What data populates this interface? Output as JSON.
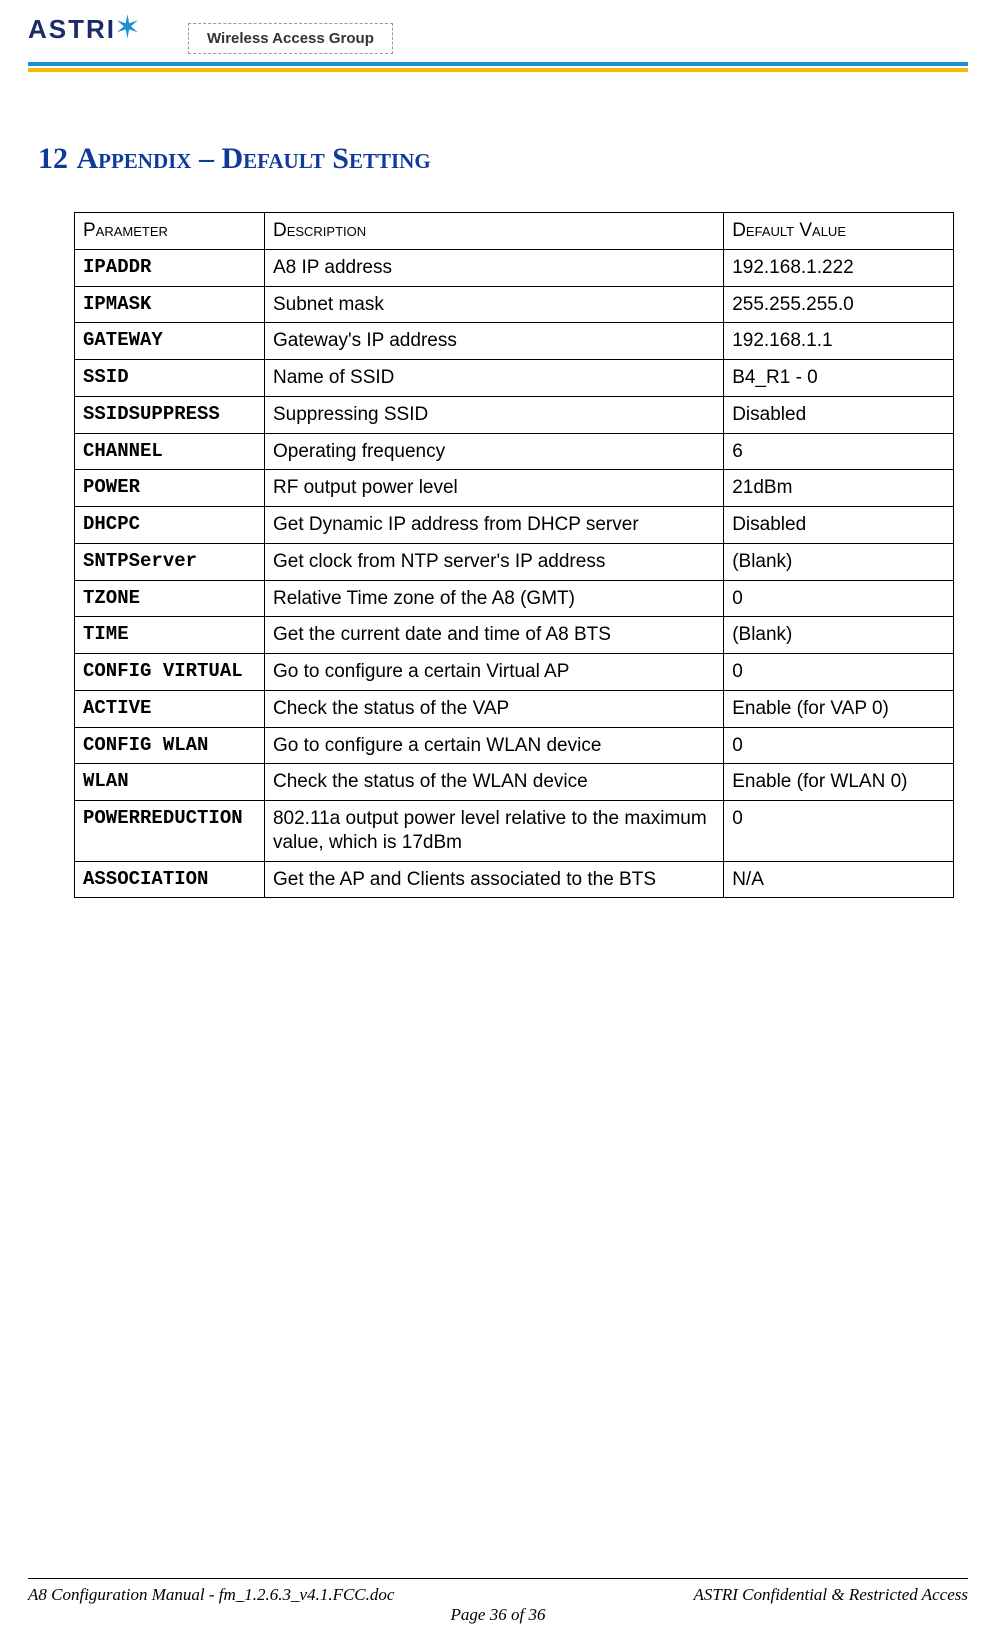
{
  "header": {
    "logo_text": "ASTRI",
    "group_label": "Wireless Access Group"
  },
  "section": {
    "number": "12",
    "title": "Appendix – Default Setting"
  },
  "table": {
    "columns": [
      "Parameter",
      "Description",
      "Default Value"
    ],
    "rows": [
      {
        "param": "IPADDR",
        "desc": "A8 IP address",
        "value": "192.168.1.222"
      },
      {
        "param": "IPMASK",
        "desc": "Subnet mask",
        "value": "255.255.255.0"
      },
      {
        "param": "GATEWAY",
        "desc": "Gateway's IP address",
        "value": "192.168.1.1"
      },
      {
        "param": "SSID",
        "desc": "Name of SSID",
        "value": "B4_R1 - 0"
      },
      {
        "param": "SSIDSUPPRESS",
        "desc": "Suppressing SSID",
        "value": "Disabled"
      },
      {
        "param": "CHANNEL",
        "desc": "Operating frequency",
        "value": "6"
      },
      {
        "param": "POWER",
        "desc": "RF output power level",
        "value": "21dBm"
      },
      {
        "param": "DHCPC",
        "desc": "Get Dynamic IP address from DHCP server",
        "value": "Disabled"
      },
      {
        "param": "SNTPServer",
        "desc": "Get clock from NTP server's IP address",
        "value": "(Blank)"
      },
      {
        "param": "TZONE",
        "desc": "Relative Time zone of the A8 (GMT)",
        "value": "0"
      },
      {
        "param": "TIME",
        "desc": "Get the current date and time of A8 BTS",
        "value": "(Blank)"
      },
      {
        "param": "CONFIG VIRTUAL",
        "desc": "Go to configure a certain Virtual AP",
        "value": "0"
      },
      {
        "param": "ACTIVE",
        "desc": "Check the status of the VAP",
        "value": "Enable (for VAP 0)"
      },
      {
        "param": "CONFIG WLAN",
        "desc": "Go to configure a certain WLAN device",
        "value": "0"
      },
      {
        "param": "WLAN",
        "desc": "Check the status of the WLAN device",
        "value": "Enable (for WLAN 0)"
      },
      {
        "param": "POWERREDUCTION",
        "desc": "802.11a output power level relative to the maximum value, which is 17dBm",
        "value": "0"
      },
      {
        "param": "ASSOCIATION",
        "desc": "Get the AP and Clients associated to the BTS",
        "value": "N/A"
      }
    ]
  },
  "footer": {
    "left": "A8 Configuration Manual - fm_1.2.6.3_v4.1.FCC.doc",
    "right": "ASTRI Confidential & Restricted Access",
    "center": "Page 36 of 36"
  },
  "colors": {
    "heading": "#103a9a",
    "rule_blue": "#1d8fd6",
    "rule_yellow": "#f2b90f",
    "border": "#000000",
    "text": "#000000",
    "background": "#ffffff"
  }
}
